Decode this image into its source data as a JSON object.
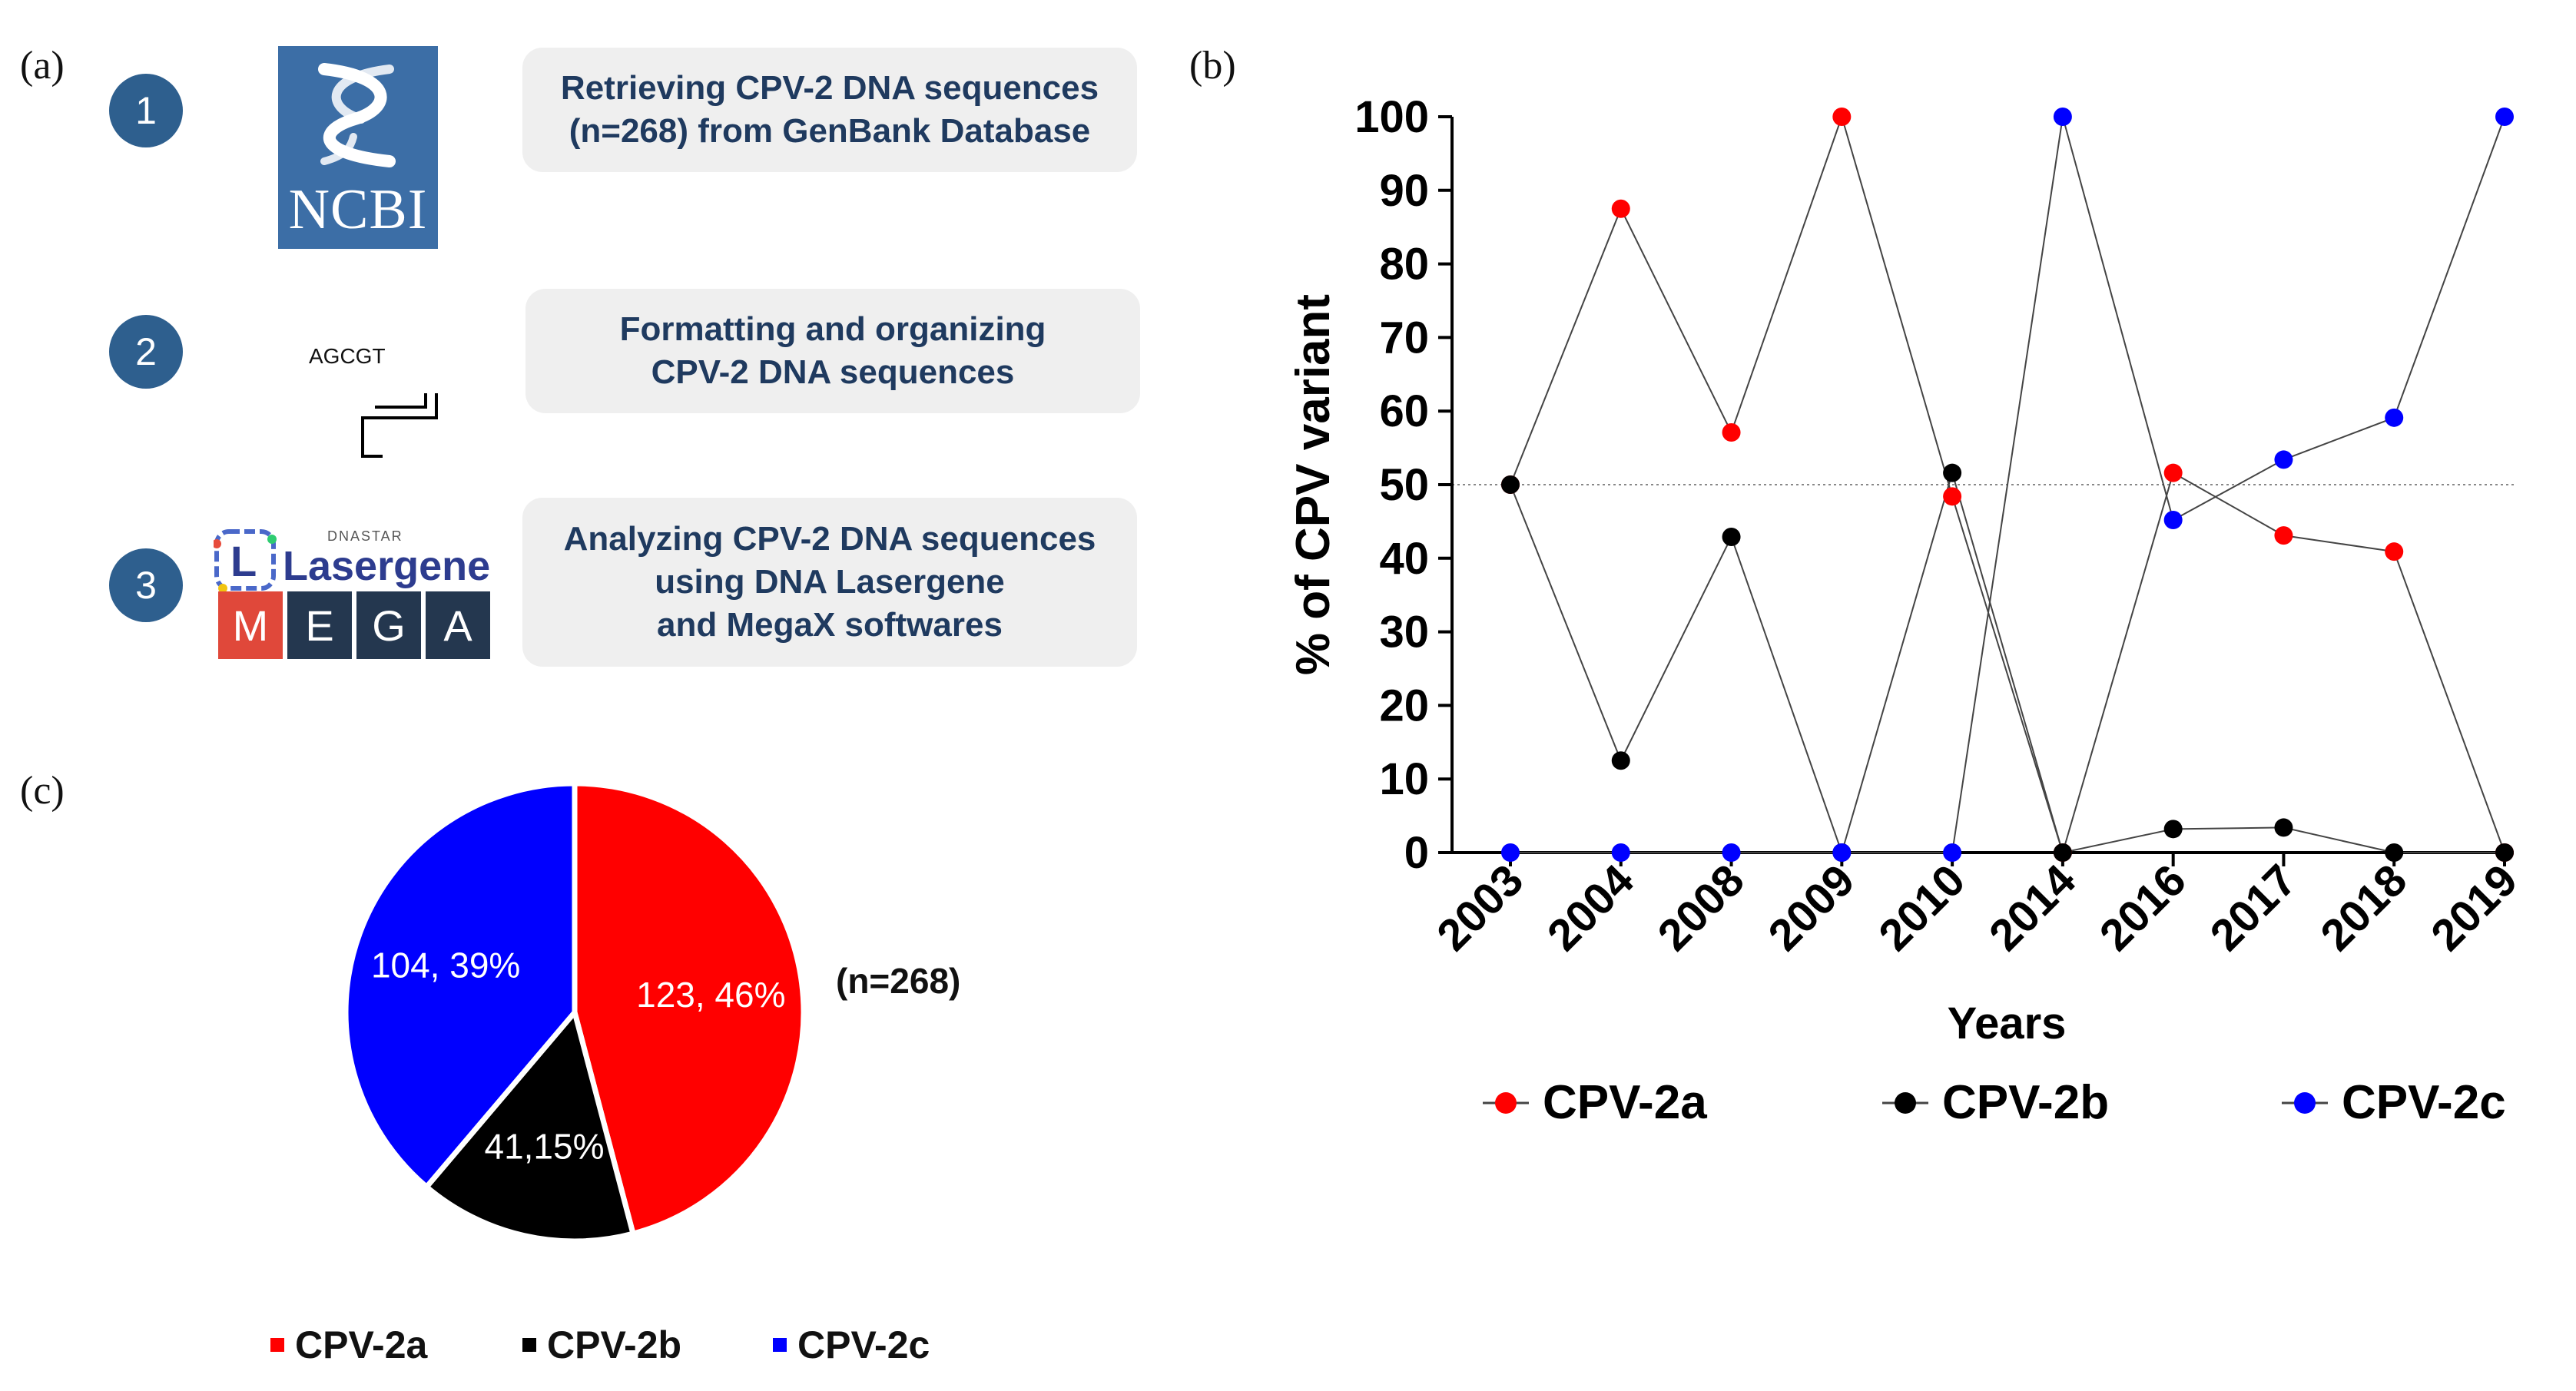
{
  "panels": {
    "a": "(a)",
    "b": "(b)",
    "c": "(c)"
  },
  "workflow": {
    "steps": [
      {
        "num": "1",
        "text": "Retrieving CPV-2 DNA sequences\n(n=268) from GenBank Database"
      },
      {
        "num": "2",
        "text": "Formatting  and organizing\nCPV-2 DNA sequences"
      },
      {
        "num": "3",
        "text": "Analyzing CPV-2 DNA sequences\nusing DNA Lasergene\nand MegaX softwares"
      }
    ],
    "ncbi_label": "NCBI",
    "dna_label": "AGCGT",
    "lasergene": {
      "brand": "DNASTAR",
      "name": "Lasergene",
      "badge": "L"
    },
    "mega_letters": [
      "M",
      "E",
      "G",
      "A"
    ]
  },
  "colors": {
    "cpv2a": "#ff0000",
    "cpv2b": "#000000",
    "cpv2c": "#0000ff",
    "step_fill": "#2e5f8e",
    "ncbi_fill": "#3c6ea6"
  },
  "chart_data": [
    {
      "type": "line",
      "ylabel": "% of CPV variant",
      "xlabel": "Years",
      "categories": [
        "2003",
        "2004",
        "2008",
        "2009",
        "2010",
        "2014",
        "2016",
        "2017",
        "2018",
        "2019"
      ],
      "ylim": [
        0,
        100
      ],
      "yticks": [
        0,
        10,
        20,
        30,
        40,
        50,
        60,
        70,
        80,
        90,
        100
      ],
      "reference_line": 50,
      "series": [
        {
          "name": "CPV-2a",
          "color": "#ff0000",
          "values": [
            50,
            87.5,
            57.1,
            100,
            48.4,
            0,
            51.6,
            43.1,
            40.9,
            0
          ]
        },
        {
          "name": "CPV-2b",
          "color": "#000000",
          "values": [
            50,
            12.5,
            42.9,
            0,
            51.6,
            0,
            3.2,
            3.4,
            0,
            0
          ]
        },
        {
          "name": "CPV-2c",
          "color": "#0000ff",
          "values": [
            0,
            0,
            0,
            0,
            0,
            100,
            45.2,
            53.4,
            59.1,
            100
          ]
        }
      ]
    },
    {
      "type": "pie",
      "annotation": "(n=268)",
      "slices": [
        {
          "name": "CPV-2a",
          "count": 123,
          "percent": 46,
          "label": "123, 46%",
          "color": "#ff0000"
        },
        {
          "name": "CPV-2b",
          "count": 41,
          "percent": 15,
          "label": "41,15%",
          "color": "#000000"
        },
        {
          "name": "CPV-2c",
          "count": 104,
          "percent": 39,
          "label": "104, 39%",
          "color": "#0000ff"
        }
      ],
      "legend": [
        "CPV-2a",
        "CPV-2b",
        "CPV-2c"
      ]
    }
  ]
}
